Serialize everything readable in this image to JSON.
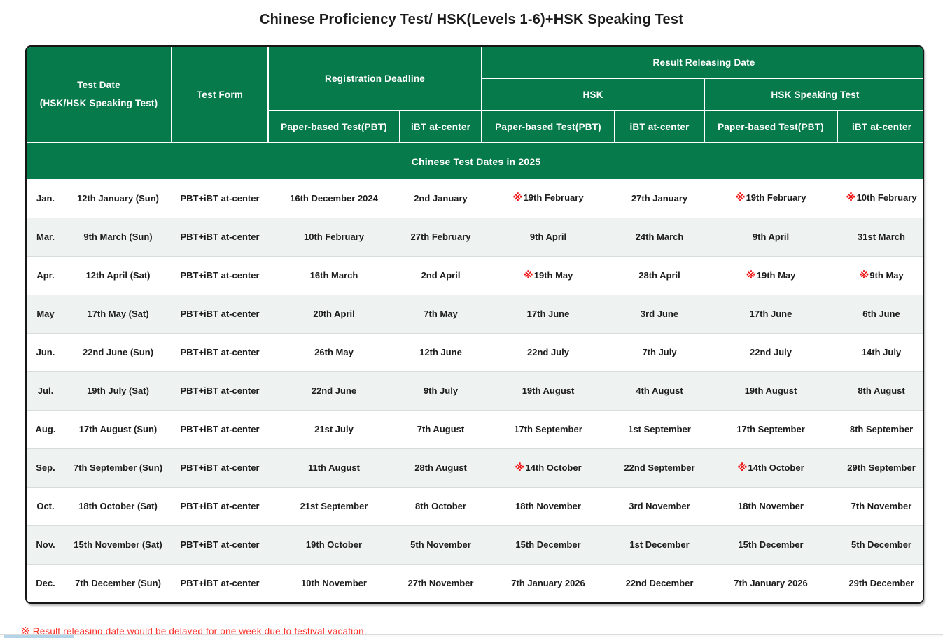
{
  "page": {
    "title": "Chinese Proficiency Test/ HSK(Levels 1-6)+HSK Speaking Test"
  },
  "colors": {
    "header_green": "#067a4a",
    "stripe_row": "#eef3f1",
    "mark_red": "#ee1010",
    "note_red": "#fb3028",
    "outer_border": "#161616"
  },
  "table": {
    "headers": {
      "test_date": "Test Date",
      "test_date_sub": "(HSK/HSK Speaking Test)",
      "test_form": "Test Form",
      "registration_deadline": "Registration Deadline",
      "result_releasing_date": "Result Releasing Date",
      "hsk": "HSK",
      "hsk_speaking_test": "HSK Speaking Test",
      "pbt": "Paper-based Test(PBT)",
      "ibt": "iBT at-center"
    },
    "band": "Chinese Test Dates in 2025",
    "rows": [
      {
        "month": "Jan.",
        "test_date": "12th January (Sun)",
        "test_form": "PBT+iBT at-center",
        "reg_pbt": "16th December 2024",
        "reg_ibt": "2nd January",
        "hsk_pbt": "※19th February",
        "hsk_ibt": "27th January",
        "spk_pbt": "※19th February",
        "spk_ibt": "※10th February"
      },
      {
        "month": "Mar.",
        "test_date": "9th March (Sun)",
        "test_form": "PBT+iBT at-center",
        "reg_pbt": "10th February",
        "reg_ibt": "27th February",
        "hsk_pbt": "9th April",
        "hsk_ibt": "24th March",
        "spk_pbt": "9th April",
        "spk_ibt": "31st March"
      },
      {
        "month": "Apr.",
        "test_date": "12th April (Sat)",
        "test_form": "PBT+iBT at-center",
        "reg_pbt": "16th March",
        "reg_ibt": "2nd April",
        "hsk_pbt": "※19th May",
        "hsk_ibt": "28th April",
        "spk_pbt": "※19th May",
        "spk_ibt": "※9th May"
      },
      {
        "month": "May",
        "test_date": "17th May (Sat)",
        "test_form": "PBT+iBT at-center",
        "reg_pbt": "20th April",
        "reg_ibt": "7th May",
        "hsk_pbt": "17th June",
        "hsk_ibt": "3rd June",
        "spk_pbt": "17th June",
        "spk_ibt": "6th June"
      },
      {
        "month": "Jun.",
        "test_date": "22nd June (Sun)",
        "test_form": "PBT+iBT at-center",
        "reg_pbt": "26th May",
        "reg_ibt": "12th June",
        "hsk_pbt": "22nd July",
        "hsk_ibt": "7th July",
        "spk_pbt": "22nd July",
        "spk_ibt": "14th July"
      },
      {
        "month": "Jul.",
        "test_date": "19th July (Sat)",
        "test_form": "PBT+iBT at-center",
        "reg_pbt": "22nd June",
        "reg_ibt": "9th July",
        "hsk_pbt": "19th August",
        "hsk_ibt": "4th August",
        "spk_pbt": "19th August",
        "spk_ibt": "8th August"
      },
      {
        "month": "Aug.",
        "test_date": "17th August (Sun)",
        "test_form": "PBT+iBT at-center",
        "reg_pbt": "21st July",
        "reg_ibt": "7th August",
        "hsk_pbt": "17th September",
        "hsk_ibt": "1st September",
        "spk_pbt": "17th September",
        "spk_ibt": "8th September"
      },
      {
        "month": "Sep.",
        "test_date": "7th September (Sun)",
        "test_form": "PBT+iBT at-center",
        "reg_pbt": "11th August",
        "reg_ibt": "28th August",
        "hsk_pbt": "※14th October",
        "hsk_ibt": "22nd September",
        "spk_pbt": "※14th October",
        "spk_ibt": "29th September"
      },
      {
        "month": "Oct.",
        "test_date": "18th October (Sat)",
        "test_form": "PBT+iBT at-center",
        "reg_pbt": "21st September",
        "reg_ibt": "8th October",
        "hsk_pbt": "18th November",
        "hsk_ibt": "3rd November",
        "spk_pbt": "18th November",
        "spk_ibt": "7th November"
      },
      {
        "month": "Nov.",
        "test_date": "15th November (Sat)",
        "test_form": "PBT+iBT at-center",
        "reg_pbt": "19th October",
        "reg_ibt": "5th November",
        "hsk_pbt": "15th December",
        "hsk_ibt": "1st December",
        "spk_pbt": "15th December",
        "spk_ibt": "5th December"
      },
      {
        "month": "Dec.",
        "test_date": "7th December (Sun)",
        "test_form": "PBT+iBT at-center",
        "reg_pbt": "10th November",
        "reg_ibt": "27th November",
        "hsk_pbt": "7th January 2026",
        "hsk_ibt": "22nd December",
        "spk_pbt": "7th January 2026",
        "spk_ibt": "29th December"
      }
    ]
  },
  "footnote": {
    "mark": "※",
    "text": "Result releasing date would be delayed for one week due to festival vacation."
  }
}
